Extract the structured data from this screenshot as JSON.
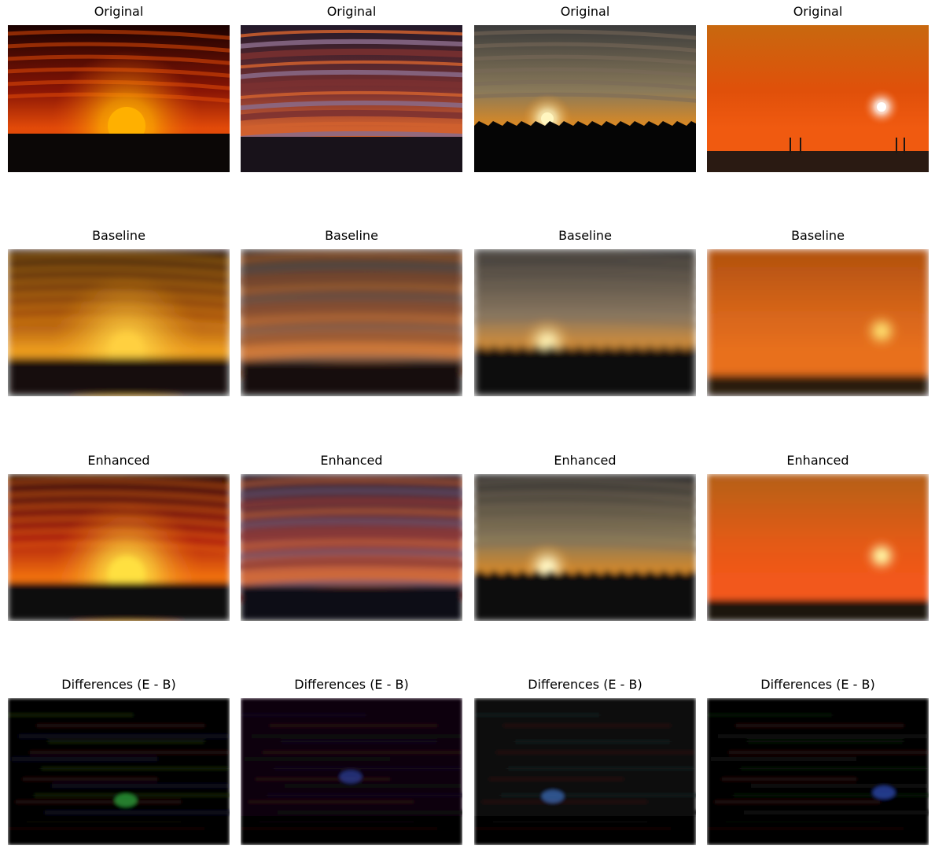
{
  "figure": {
    "rows": [
      {
        "key": "original",
        "title": "Original",
        "panels": [
          {
            "scene": "sun-setting-on-horizon",
            "palette": [
              "#1a0201",
              "#8a1505",
              "#e24a08",
              "#ffb000",
              "#0b0706"
            ]
          },
          {
            "scene": "streaked-clouds",
            "palette": [
              "#22192a",
              "#7a3030",
              "#d0602e",
              "#8a6b8a",
              "#18121a"
            ]
          },
          {
            "scene": "sun-over-treeline",
            "palette": [
              "#3b3b3b",
              "#8a7a5a",
              "#e08a20",
              "#fff6c0",
              "#050505"
            ]
          },
          {
            "scene": "orange-sky-small-sun",
            "palette": [
              "#c8680f",
              "#e0500a",
              "#f05a10",
              "#ffffff",
              "#2a1a12"
            ]
          }
        ]
      },
      {
        "key": "baseline",
        "title": "Baseline",
        "panels": [
          {
            "scene": "blurred-sunset",
            "palette": [
              "#2a1608",
              "#a04a0a",
              "#f0a020",
              "#ffd040",
              "#120d0a"
            ]
          },
          {
            "scene": "blurred-clouds",
            "palette": [
              "#2a2625",
              "#8a5030",
              "#d07a3a",
              "#6a5a55",
              "#141110"
            ]
          },
          {
            "scene": "blurred-sun-low",
            "palette": [
              "#343434",
              "#8a7860",
              "#e09030",
              "#fff0b0",
              "#0c0c0c"
            ]
          },
          {
            "scene": "blurred-orange-sky",
            "palette": [
              "#b0500e",
              "#d8661a",
              "#e8701c",
              "#ffe070",
              "#2a1a10"
            ]
          }
        ]
      },
      {
        "key": "enhanced",
        "title": "Enhanced",
        "panels": [
          {
            "scene": "smooth-sunset",
            "palette": [
              "#2a0a06",
              "#b0200a",
              "#f07010",
              "#ffe040",
              "#0b0a0c"
            ]
          },
          {
            "scene": "smooth-clouds",
            "palette": [
              "#221a2a",
              "#8a3a3a",
              "#d06a3a",
              "#6a5570",
              "#0f0c12"
            ]
          },
          {
            "scene": "smooth-sun-low",
            "palette": [
              "#2f2f30",
              "#8a7a58",
              "#e08a22",
              "#fff4c0",
              "#09090b"
            ]
          },
          {
            "scene": "smooth-orange-sky",
            "palette": [
              "#b4601a",
              "#e25a14",
              "#f2581a",
              "#fff2a0",
              "#1c120c"
            ]
          }
        ]
      },
      {
        "key": "differences",
        "title": "Differences (E - B)",
        "panels": [
          {
            "scene": "diff-map-1",
            "palette": [
              "#050505",
              "#1a2a0a",
              "#2a0a0a",
              "#30b040",
              "#0a0a20"
            ]
          },
          {
            "scene": "diff-map-2",
            "palette": [
              "#080608",
              "#1a1024",
              "#2a0c10",
              "#3040a0",
              "#0c0c0c"
            ]
          },
          {
            "scene": "diff-map-3",
            "palette": [
              "#070707",
              "#1a2220",
              "#2a0e0c",
              "#4070c0",
              "#0a0a0a"
            ]
          },
          {
            "scene": "diff-map-4",
            "palette": [
              "#060606",
              "#141c12",
              "#28100c",
              "#3050c0",
              "#0a0808"
            ]
          }
        ]
      }
    ]
  }
}
